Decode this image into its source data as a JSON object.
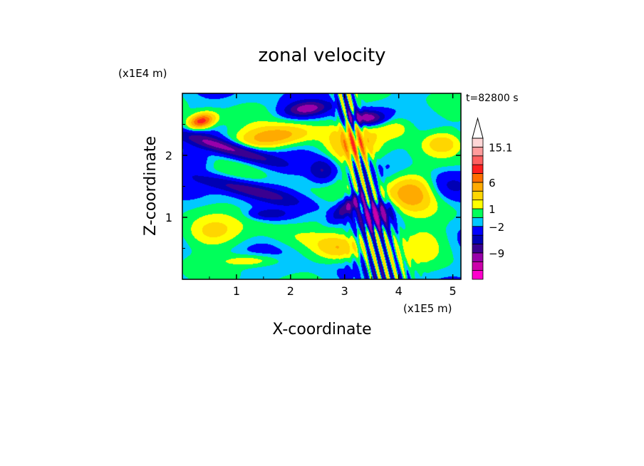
{
  "chart_data": {
    "type": "heatmap",
    "title": "zonal velocity",
    "xlabel": "X-coordinate",
    "ylabel": "Z-coordinate",
    "x_unit": "(x1E5 m)",
    "y_unit": "(x1E4 m)",
    "time_label": "t=82800 s",
    "xlim": [
      0,
      5.15
    ],
    "ylim": [
      0,
      3.0
    ],
    "x_ticks": [
      1,
      2,
      3,
      4,
      5
    ],
    "y_ticks": [
      1,
      2
    ],
    "colorbar": {
      "labels": [
        "15.1",
        "6",
        "1",
        "−2",
        "−9"
      ],
      "colors": [
        "#ff00cc",
        "#cc00aa",
        "#9900aa",
        "#3a0090",
        "#0000b4",
        "#0000ff",
        "#00c8ff",
        "#00ff5a",
        "#ffff00",
        "#ffd600",
        "#ffaa00",
        "#ff6e00",
        "#ff2020",
        "#ff6060",
        "#ff9c9c",
        "#ffd6d6"
      ],
      "extend": "max"
    },
    "field_levels": [
      -12,
      -9,
      -6,
      -4,
      -2,
      0,
      1,
      2.5,
      4,
      6,
      8,
      10,
      12.5,
      15.1
    ],
    "field_colors": [
      "#cc00aa",
      "#9900aa",
      "#3a0090",
      "#0000b4",
      "#0000ff",
      "#00c8ff",
      "#00ff5a",
      "#ffff00",
      "#ffd600",
      "#ffaa00",
      "#ff6e00",
      "#ff2020",
      "#ff6060",
      "#ff9c9c"
    ]
  }
}
